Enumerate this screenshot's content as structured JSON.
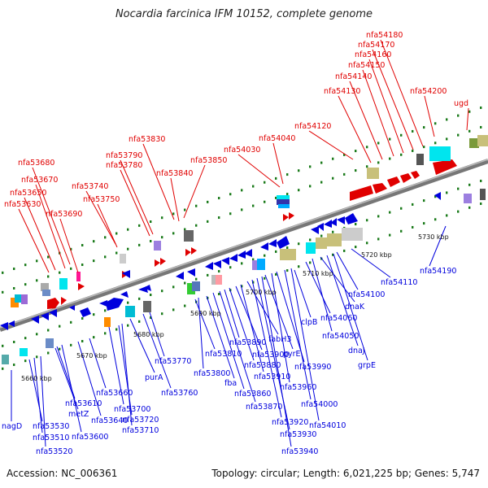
{
  "title": "Nocardia farcinica IFM 10152, complete genome",
  "footer": {
    "accession": "Accession: NC_006361",
    "summary": "Topology: circular; Length: 6,021,225 bp; Genes: 5,747"
  },
  "colors": {
    "top_strand": "#e00000",
    "bottom_strand": "#0000dd",
    "backbone": "#888888",
    "dots": "#1a7a1a"
  },
  "ticks": [
    {
      "label": "5660 kbp"
    },
    {
      "label": "5670 kbp"
    },
    {
      "label": "5680 kbp"
    },
    {
      "label": "5690 kbp"
    },
    {
      "label": "5700 kbp"
    },
    {
      "label": "5710 kbp"
    },
    {
      "label": "5720 kbp"
    },
    {
      "label": "5730 kbp"
    }
  ],
  "top_labels": [
    "nfa53630",
    "nfa53650",
    "nfa53670",
    "nfa53680",
    "nfa53690",
    "nfa53740",
    "nfa53750",
    "nfa53780",
    "nfa53790",
    "nfa53830",
    "nfa53840",
    "nfa53850",
    "nfa54030",
    "nfa54040",
    "nfa54120",
    "nfa54130",
    "nfa54140",
    "nfa54150",
    "nfa54160",
    "nfa54170",
    "nfa54180",
    "nfa54200",
    "ugd"
  ],
  "bottom_labels": [
    "nagD",
    "nfa53530",
    "nfa53510",
    "nfa53520",
    "metZ",
    "nfa53610",
    "nfa53600",
    "nfa53640",
    "nfa53660",
    "nfa53700",
    "nfa53720",
    "nfa53710",
    "purA",
    "nfa53760",
    "nfa53770",
    "nfa53810",
    "nfa53800",
    "fba",
    "nfa53860",
    "nfa53870",
    "nfa53890",
    "nfa53880",
    "nfa53900",
    "nfa53910",
    "fabH3",
    "nfa53920",
    "nfa53930",
    "nfa53940",
    "pyrE",
    "nfa53960",
    "nfa53990",
    "nfa54000",
    "nfa54010",
    "clpB",
    "nfa54060",
    "nfa54050",
    "dnaK",
    "dnaJ",
    "grpE",
    "nfa54100",
    "nfa54110",
    "nfa54190"
  ]
}
